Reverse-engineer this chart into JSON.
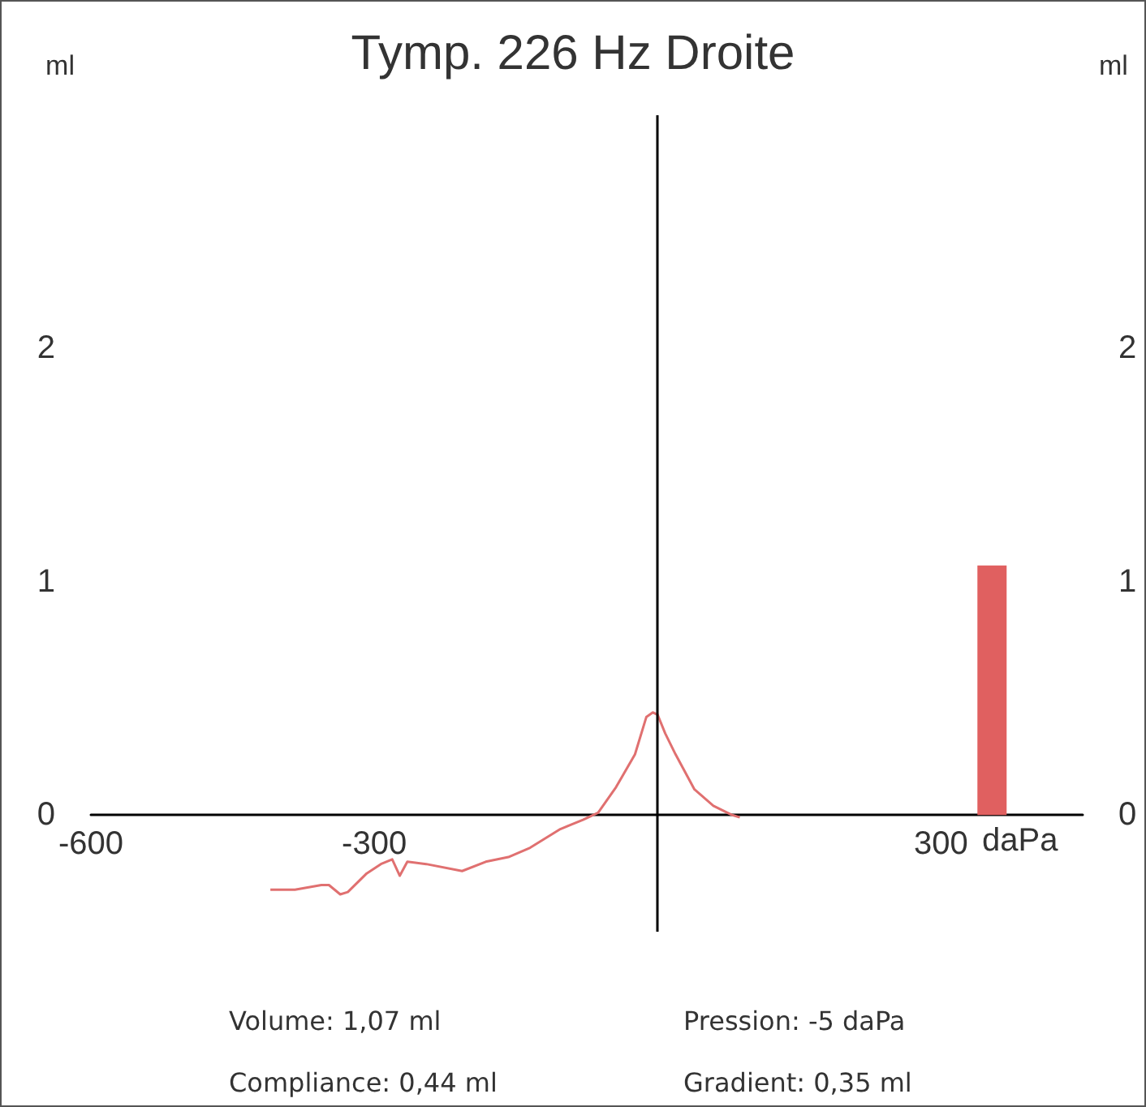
{
  "chart_data": {
    "type": "line",
    "title": "Tymp. 226 Hz Droite",
    "xlabel": "daPa",
    "ylabel": "ml",
    "y2label": "ml",
    "xlim": [
      -600,
      450
    ],
    "xticks": [
      -600,
      -300,
      300
    ],
    "ylim": [
      -0.5,
      3
    ],
    "yticks": [
      0,
      1,
      2
    ],
    "y2lim": [
      -0.5,
      3
    ],
    "y2ticks": [
      0,
      1,
      2
    ],
    "grid": false,
    "marker": "none",
    "line_style": "solid",
    "ref_lines": [
      {
        "axis": "x",
        "value": 0,
        "color": "#000000"
      }
    ],
    "series": [
      {
        "color": "#e07070",
        "x": [
          -410,
          -384,
          -356,
          -348,
          -336,
          -328,
          -308,
          -293,
          -281,
          -273,
          -265,
          -245,
          -207,
          -182,
          -158,
          -135,
          -103,
          -79,
          -63,
          -44,
          -24,
          -12,
          -5,
          0,
          8,
          19,
          39,
          59,
          79,
          87
        ],
        "values": [
          -0.32,
          -0.32,
          -0.3,
          -0.3,
          -0.34,
          -0.33,
          -0.25,
          -0.21,
          -0.19,
          -0.26,
          -0.2,
          -0.21,
          -0.24,
          -0.2,
          -0.18,
          -0.14,
          -0.06,
          -0.02,
          0.01,
          0.12,
          0.26,
          0.42,
          0.44,
          0.43,
          0.35,
          0.26,
          0.11,
          0.04,
          0,
          -0.01
        ]
      },
      {
        "type": "bar",
        "color": "#e06060",
        "x": [
          354
        ],
        "values": [
          1.07
        ]
      }
    ],
    "annotations": [
      "Volume: 1,07 ml",
      "Pression: -5 daPa",
      "Compliance: 0,44 ml",
      "Gradient: 0,35 ml"
    ]
  }
}
